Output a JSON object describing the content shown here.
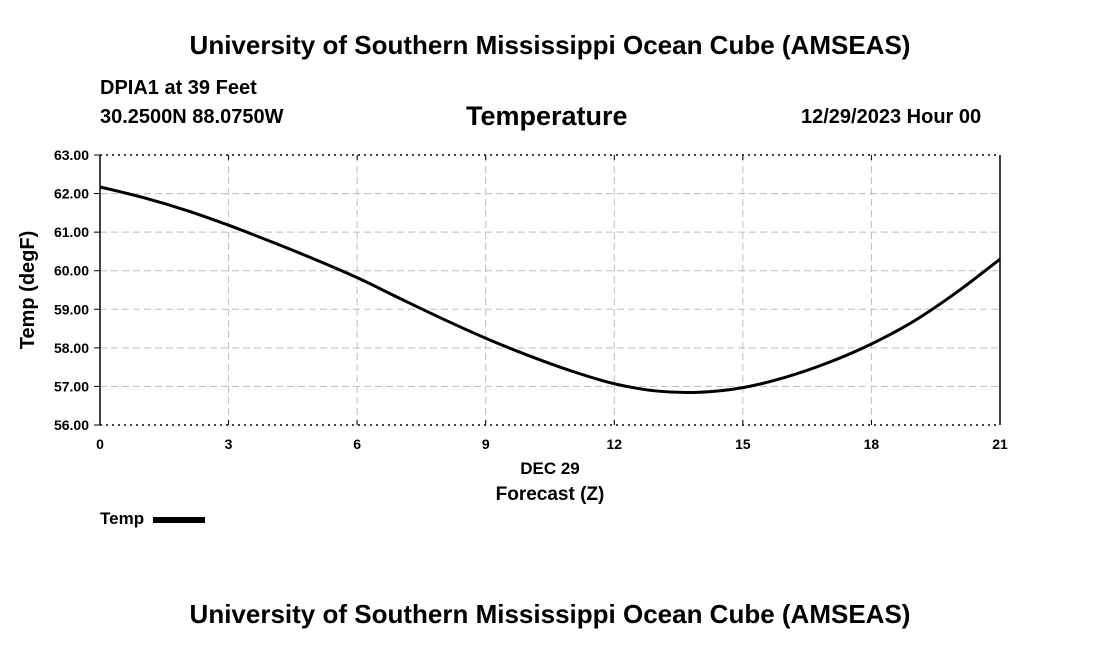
{
  "header": {
    "title": "University of Southern Mississippi Ocean Cube (AMSEAS)",
    "station": "DPIA1 at 39 Feet",
    "coordinates": "30.2500N  88.0750W",
    "chart_title": "Temperature",
    "datetime": "12/29/2023 Hour 00"
  },
  "footer": {
    "title": "University of Southern Mississippi Ocean Cube (AMSEAS)"
  },
  "legend": {
    "label": "Temp"
  },
  "chart_data": {
    "type": "line",
    "title": "Temperature",
    "xlabel": "Forecast (Z)",
    "xlabel_date": "DEC 29",
    "ylabel": "Temp (degF)",
    "xlim": [
      0,
      21
    ],
    "ylim": [
      56,
      63
    ],
    "x_ticks": [
      0,
      3,
      6,
      9,
      12,
      15,
      18,
      21
    ],
    "x_tick_labels": [
      "0",
      "3",
      "6",
      "9",
      "12",
      "15",
      "18",
      "21"
    ],
    "y_ticks": [
      56,
      57,
      58,
      59,
      60,
      61,
      62,
      63
    ],
    "y_tick_labels": [
      "56.00",
      "57.00",
      "58.00",
      "59.00",
      "60.00",
      "61.00",
      "62.00",
      "63.00"
    ],
    "grid": true,
    "series": [
      {
        "name": "Temp",
        "color": "#000000",
        "x": [
          0,
          1,
          2,
          3,
          4,
          5,
          6,
          7,
          8,
          9,
          10,
          11,
          12,
          13,
          14,
          15,
          16,
          17,
          18,
          19,
          20,
          21
        ],
        "values": [
          62.17,
          61.9,
          61.57,
          61.18,
          60.75,
          60.3,
          59.82,
          59.28,
          58.75,
          58.25,
          57.8,
          57.4,
          57.07,
          56.88,
          56.85,
          56.97,
          57.24,
          57.62,
          58.1,
          58.7,
          59.45,
          60.3
        ]
      }
    ]
  }
}
